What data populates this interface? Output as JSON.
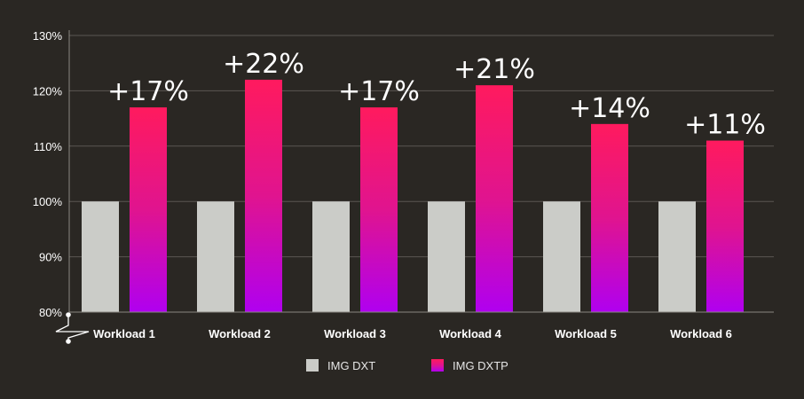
{
  "colors": {
    "background": "#2a2723",
    "grid": "#5a5753",
    "axis": "#8a8782",
    "baseline_bar": "#cbccc8",
    "gradient_top": "#ff1a5e",
    "gradient_mid": "#e0148f",
    "gradient_bottom": "#b000f0"
  },
  "chart_data": {
    "type": "bar",
    "title": "",
    "xlabel": "",
    "ylabel": "",
    "categories": [
      "Workload 1",
      "Workload 2",
      "Workload 3",
      "Workload 4",
      "Workload 5",
      "Workload 6"
    ],
    "y_ticks": [
      "80%",
      "90%",
      "100%",
      "110%",
      "120%",
      "130%"
    ],
    "ylim": [
      80,
      130
    ],
    "grid": true,
    "legend_position": "bottom-center",
    "series": [
      {
        "name": "IMG DXT",
        "values": [
          100,
          100,
          100,
          100,
          100,
          100
        ]
      },
      {
        "name": "IMG DXTP",
        "values": [
          117,
          122,
          117,
          121,
          114,
          111
        ]
      }
    ],
    "data_labels": [
      "+17%",
      "+22%",
      "+17%",
      "+21%",
      "+14%",
      "+11%"
    ]
  }
}
